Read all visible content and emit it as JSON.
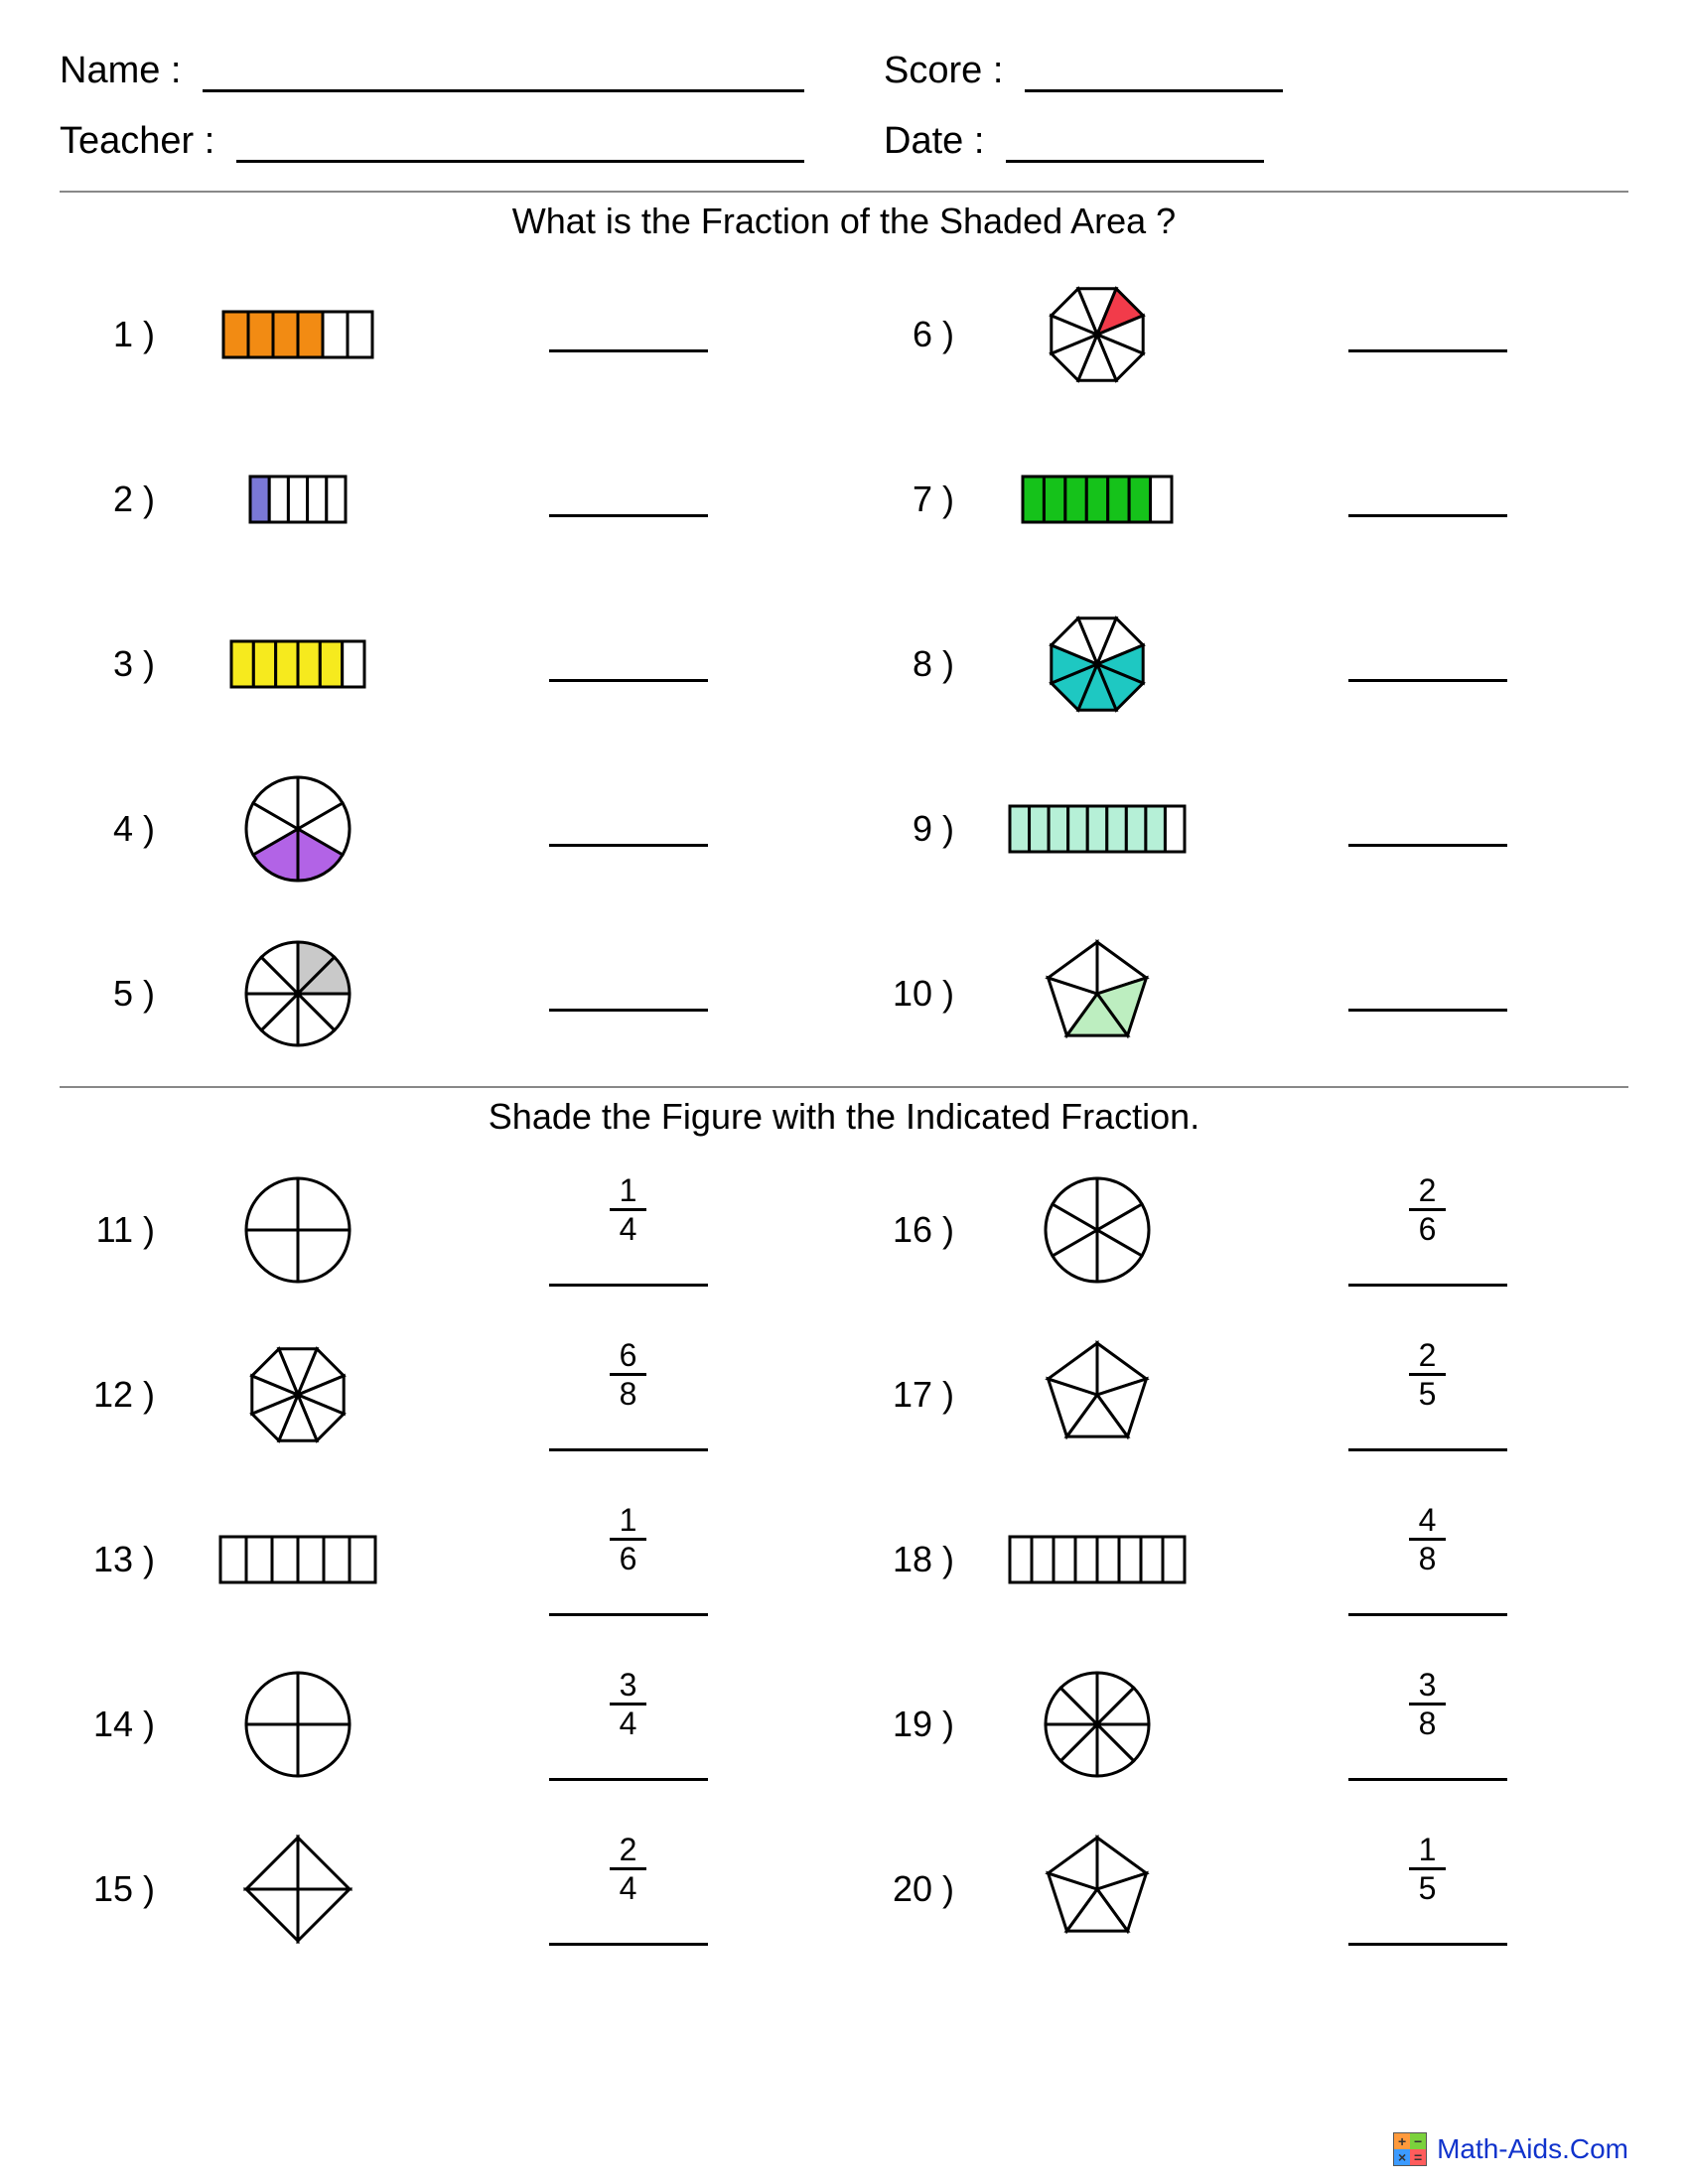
{
  "header": {
    "name_label": "Name :",
    "teacher_label": "Teacher :",
    "score_label": "Score :",
    "date_label": "Date :"
  },
  "section1": {
    "title": "What is the Fraction of the Shaded Area ?",
    "problems": [
      {
        "n": "1 )",
        "shape": "rect",
        "segments": 6,
        "shaded_indices": [
          0,
          1,
          2,
          3
        ],
        "color": "#f28b13",
        "width": 150,
        "height": 46
      },
      {
        "n": "6 )",
        "shape": "octagon",
        "segments": 8,
        "shaded_indices": [
          1
        ],
        "color": "#f23b4a",
        "size": 100
      },
      {
        "n": "2 )",
        "shape": "rect",
        "segments": 5,
        "shaded_indices": [
          0
        ],
        "color": "#7a78d6",
        "width": 96,
        "height": 46
      },
      {
        "n": "7 )",
        "shape": "rect",
        "segments": 7,
        "shaded_indices": [
          0,
          1,
          2,
          3,
          4,
          5
        ],
        "color": "#15c21a",
        "width": 150,
        "height": 46
      },
      {
        "n": "3 )",
        "shape": "rect",
        "segments": 6,
        "shaded_indices": [
          0,
          1,
          2,
          3,
          4
        ],
        "color": "#f6ea1e",
        "width": 134,
        "height": 46
      },
      {
        "n": "8 )",
        "shape": "octagon",
        "segments": 8,
        "shaded_indices": [
          2,
          3,
          4,
          5,
          6
        ],
        "color": "#1ec8c2",
        "size": 100
      },
      {
        "n": "4 )",
        "shape": "circle",
        "segments": 6,
        "shaded_indices": [
          2,
          3
        ],
        "color": "#b263e6",
        "size": 104
      },
      {
        "n": "9 )",
        "shape": "rect",
        "segments": 9,
        "shaded_indices": [
          0,
          1,
          2,
          3,
          4,
          5,
          6,
          7
        ],
        "color": "#b6f0d7",
        "width": 176,
        "height": 46
      },
      {
        "n": "5 )",
        "shape": "circle",
        "segments": 8,
        "shaded_indices": [
          0,
          1
        ],
        "color": "#c9c9c9",
        "size": 104
      },
      {
        "n": "10 )",
        "shape": "pentagon",
        "segments": 5,
        "shaded_indices": [
          1,
          2
        ],
        "color": "#bdeec0",
        "size": 104
      }
    ]
  },
  "section2": {
    "title": "Shade the Figure with the Indicated Fraction.",
    "problems": [
      {
        "n": "11 )",
        "shape": "circle",
        "segments": 4,
        "size": 104,
        "num": "1",
        "den": "4"
      },
      {
        "n": "16 )",
        "shape": "circle",
        "segments": 6,
        "size": 104,
        "num": "2",
        "den": "6"
      },
      {
        "n": "12 )",
        "shape": "octagon",
        "segments": 8,
        "size": 100,
        "num": "6",
        "den": "8"
      },
      {
        "n": "17 )",
        "shape": "pentagon",
        "segments": 5,
        "size": 104,
        "num": "2",
        "den": "5"
      },
      {
        "n": "13 )",
        "shape": "rect",
        "segments": 6,
        "width": 156,
        "height": 46,
        "num": "1",
        "den": "6"
      },
      {
        "n": "18 )",
        "shape": "rect",
        "segments": 8,
        "width": 176,
        "height": 46,
        "num": "4",
        "den": "8"
      },
      {
        "n": "14 )",
        "shape": "circle",
        "segments": 4,
        "size": 104,
        "num": "3",
        "den": "4"
      },
      {
        "n": "19 )",
        "shape": "circle",
        "segments": 8,
        "size": 104,
        "num": "3",
        "den": "8"
      },
      {
        "n": "15 )",
        "shape": "diamond",
        "segments": 4,
        "size": 104,
        "num": "2",
        "den": "4"
      },
      {
        "n": "20 )",
        "shape": "pentagon",
        "segments": 5,
        "size": 104,
        "num": "1",
        "den": "5"
      }
    ]
  },
  "footer": {
    "text": "Math-Aids.Com",
    "logo_cells": [
      "+",
      "−",
      "×",
      "="
    ],
    "logo_colors": [
      "#ff9a3c",
      "#7bd13c",
      "#3c9bff",
      "#ff5c5c"
    ]
  },
  "style": {
    "stroke": "#000000",
    "stroke_width": 3,
    "empty_fill": "#ffffff"
  }
}
